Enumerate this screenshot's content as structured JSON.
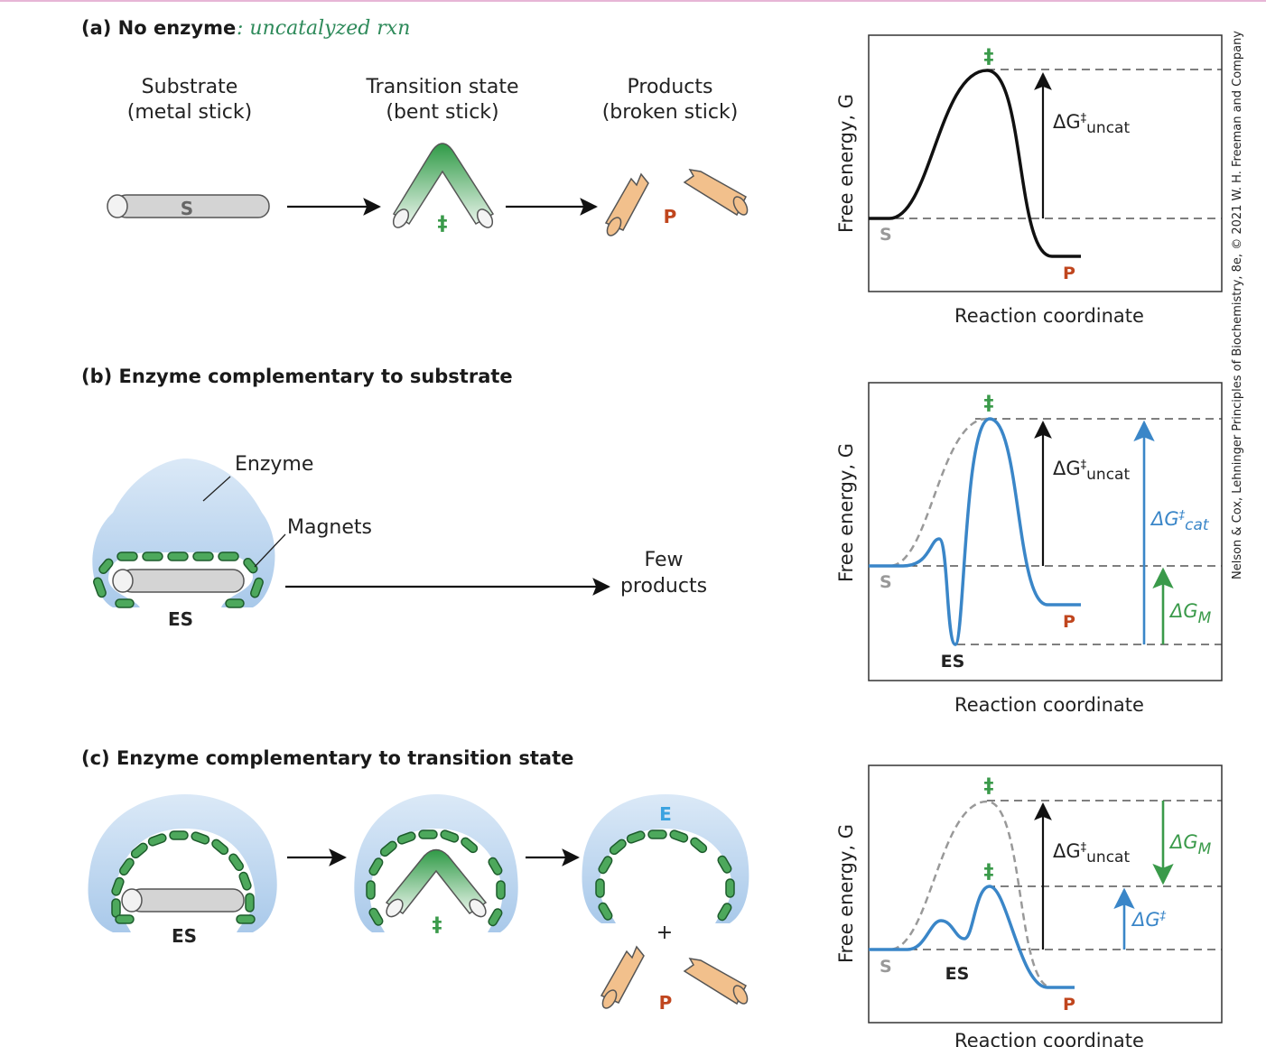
{
  "panel_a": {
    "header": "(a)  No enzyme",
    "handwritten_note": ": uncatalyzed   rxn",
    "substrate_label_1": "Substrate",
    "substrate_label_2": "(metal stick)",
    "transition_label_1": "Transition state",
    "transition_label_2": "(bent stick)",
    "products_label_1": "Products",
    "products_label_2": "(broken stick)",
    "S": "S",
    "ddagger": "‡",
    "P": "P"
  },
  "panel_b": {
    "header": "(b)  Enzyme complementary to substrate",
    "enzyme_label": "Enzyme",
    "magnets_label": "Magnets",
    "ES": "ES",
    "few_1": "Few",
    "few_2": "products"
  },
  "panel_c": {
    "header": "(c)  Enzyme complementary to transition state",
    "ES": "ES",
    "ddagger": "‡",
    "E": "E",
    "plus": "+",
    "P": "P"
  },
  "graph_common": {
    "ylabel": "Free energy, G",
    "xlabel": "Reaction coordinate",
    "S": "S",
    "P": "P",
    "ES": "ES",
    "ddagger": "‡",
    "delta": "ΔG",
    "sub_uncat": "uncat",
    "sub_cat": "cat",
    "sub_M": "M"
  },
  "credit": "Nelson & Cox, Lehninger Principles of Biochemistry, 8e, © 2021 W. H. Freeman and Company",
  "colors": {
    "blue_curve": "#3a86c8",
    "green": "#3a9a4a",
    "product_red": "#c0461e",
    "enzyme_fill": "#bcd6ef",
    "stick_gray": "#d4d4d4",
    "product_tan": "#f2c08c",
    "handwriting": "#2e8a5a",
    "e_blue": "#3aa2e0"
  }
}
